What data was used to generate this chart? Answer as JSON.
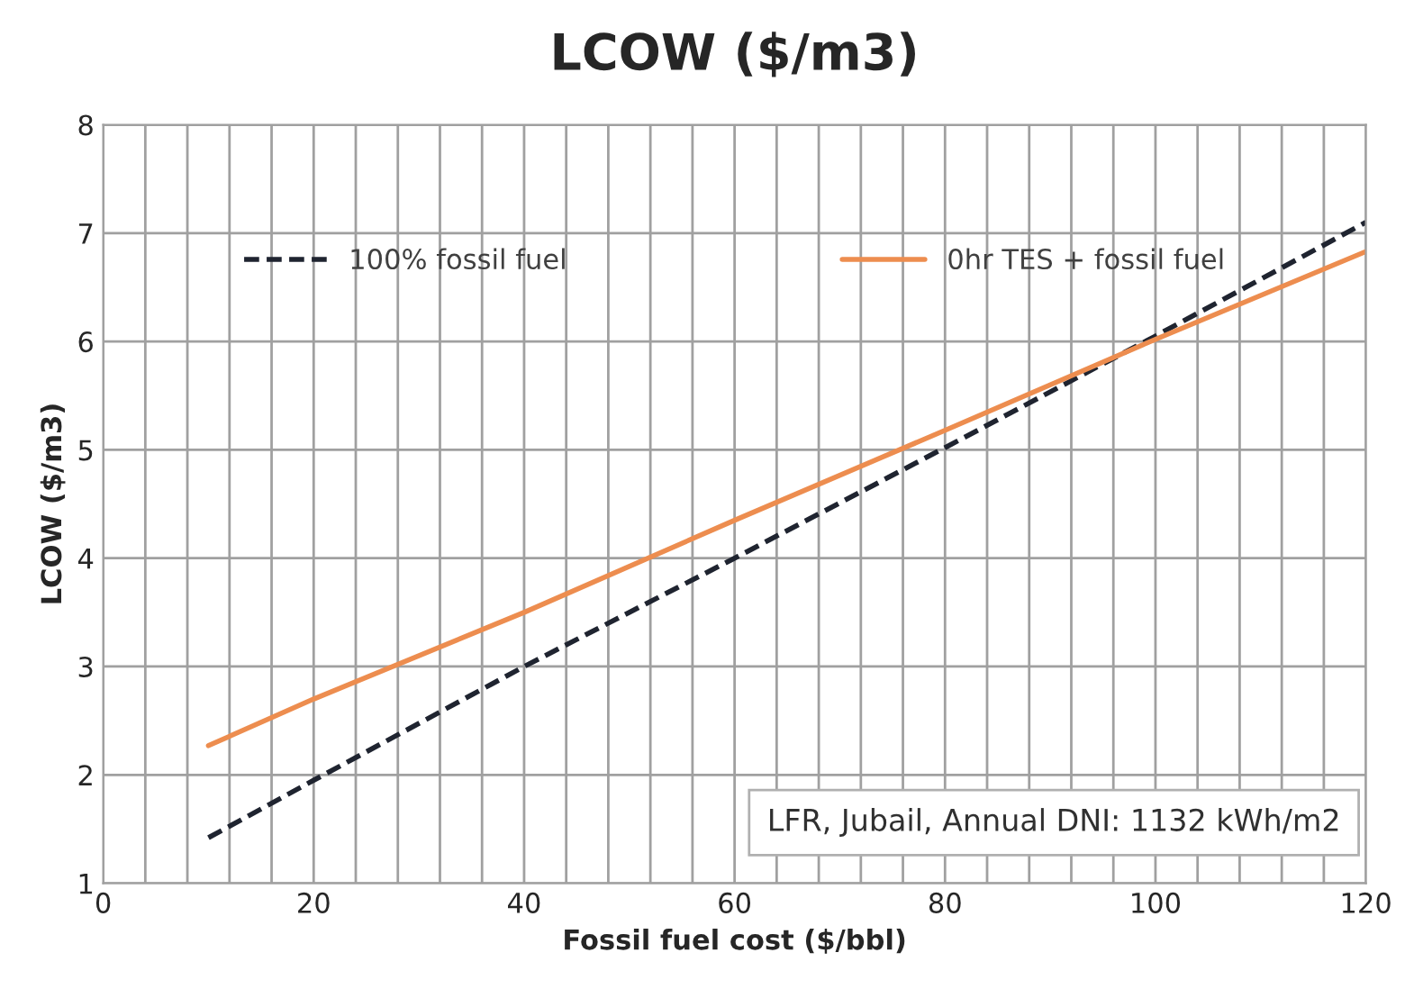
{
  "chart_data": {
    "type": "line",
    "title": "LCOW ($/m3)",
    "xlabel": "Fossil fuel cost ($/bbl)",
    "ylabel": "LCOW ($/m3)",
    "x": [
      10,
      20,
      40,
      60,
      80,
      100,
      120
    ],
    "series": [
      {
        "name": "100% fossil fuel",
        "color": "#1f2430",
        "line_style": "dashed",
        "values": [
          1.42,
          1.95,
          3.0,
          4.0,
          5.02,
          6.05,
          7.1
        ]
      },
      {
        "name": "0hr TES + fossil fuel",
        "color": "#ed8d4f",
        "line_style": "solid",
        "values": [
          2.27,
          2.7,
          3.5,
          4.35,
          5.18,
          6.02,
          6.83
        ]
      }
    ],
    "xlim": [
      0,
      120
    ],
    "ylim": [
      1,
      8
    ],
    "xticks": [
      0,
      {
        "value": 4,
        "label": null
      },
      {
        "value": 8,
        "label": null
      },
      {
        "value": 12,
        "label": null
      },
      {
        "value": 16,
        "label": null
      },
      20,
      {
        "value": 24,
        "label": null
      },
      {
        "value": 28,
        "label": null
      },
      {
        "value": 32,
        "label": null
      },
      {
        "value": 36,
        "label": null
      },
      40,
      {
        "value": 44,
        "label": null
      },
      {
        "value": 48,
        "label": null
      },
      {
        "value": 52,
        "label": null
      },
      {
        "value": 56,
        "label": null
      },
      60,
      {
        "value": 64,
        "label": null
      },
      {
        "value": 68,
        "label": null
      },
      {
        "value": 72,
        "label": null
      },
      {
        "value": 76,
        "label": null
      },
      80,
      {
        "value": 84,
        "label": null
      },
      {
        "value": 88,
        "label": null
      },
      {
        "value": 92,
        "label": null
      },
      {
        "value": 96,
        "label": null
      },
      100,
      {
        "value": 104,
        "label": null
      },
      {
        "value": 108,
        "label": null
      },
      {
        "value": 112,
        "label": null
      },
      {
        "value": 116,
        "label": null
      },
      120
    ],
    "yticks": [
      1,
      2,
      3,
      4,
      5,
      6,
      7,
      8
    ],
    "grid": true,
    "legend": "top",
    "marker": "none",
    "annotations": [
      "LFR, Jubail, Annual DNI: 1132 kWh/m2"
    ]
  }
}
